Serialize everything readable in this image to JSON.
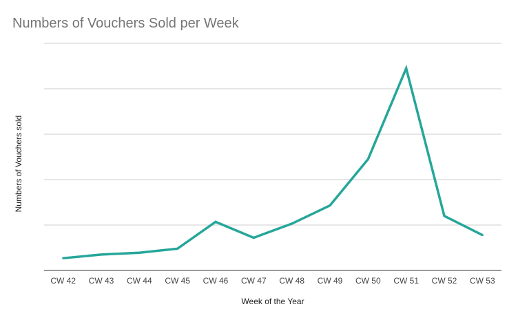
{
  "chart_data": {
    "type": "line",
    "title": "Numbers of Vouchers Sold per Week",
    "xlabel": "Week of the Year",
    "ylabel": "Numbers of Vouchers sold",
    "categories": [
      "CW 42",
      "CW 43",
      "CW 44",
      "CW 45",
      "CW 46",
      "CW 47",
      "CW 48",
      "CW 49",
      "CW 50",
      "CW 51",
      "CW 52",
      "CW 53"
    ],
    "series": [
      {
        "values": [
          27,
          35,
          39,
          48,
          107,
          72,
          103,
          143,
          245,
          445,
          120,
          78
        ],
        "color": "#26a69a"
      }
    ],
    "ylim": [
      0,
      500
    ],
    "y_gridlines": [
      100,
      200,
      300,
      400,
      500
    ],
    "y_tick_labels_shown": false,
    "grid": true,
    "legend": "none"
  }
}
